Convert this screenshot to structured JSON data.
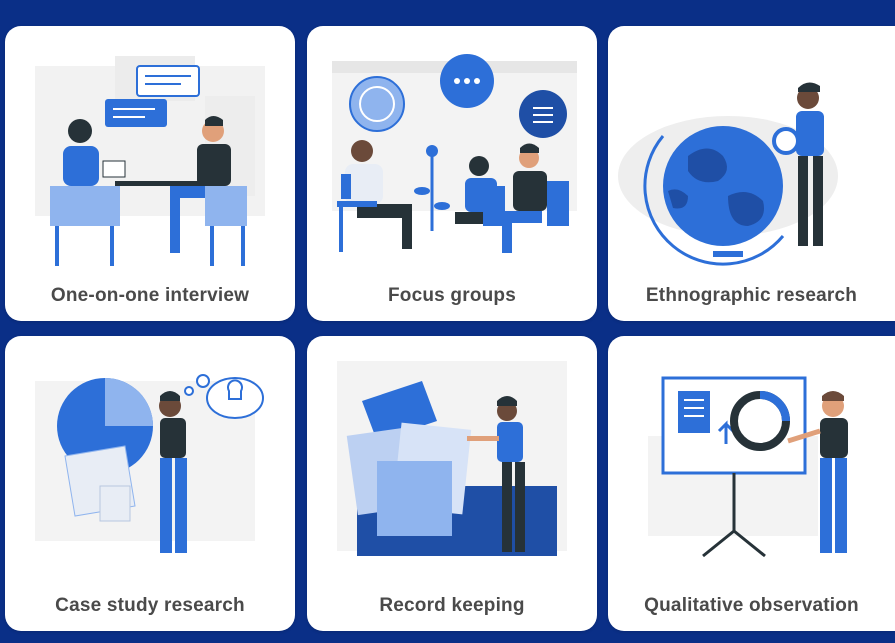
{
  "cards": [
    {
      "label": "One-on-one interview",
      "illustration": "interview-illustration"
    },
    {
      "label": "Focus groups",
      "illustration": "focus-group-illustration"
    },
    {
      "label": "Ethnographic research",
      "illustration": "globe-illustration"
    },
    {
      "label": "Case study research",
      "illustration": "lightbulb-illustration"
    },
    {
      "label": "Record keeping",
      "illustration": "folder-illustration"
    },
    {
      "label": "Qualitative observation",
      "illustration": "presentation-illustration"
    }
  ],
  "colors": {
    "background": "#0a2f87",
    "card": "#ffffff",
    "accent_blue": "#2d6fd8",
    "light_blue": "#8fb4ee",
    "dark_navy": "#263238",
    "label_text": "#4a4a4a"
  }
}
